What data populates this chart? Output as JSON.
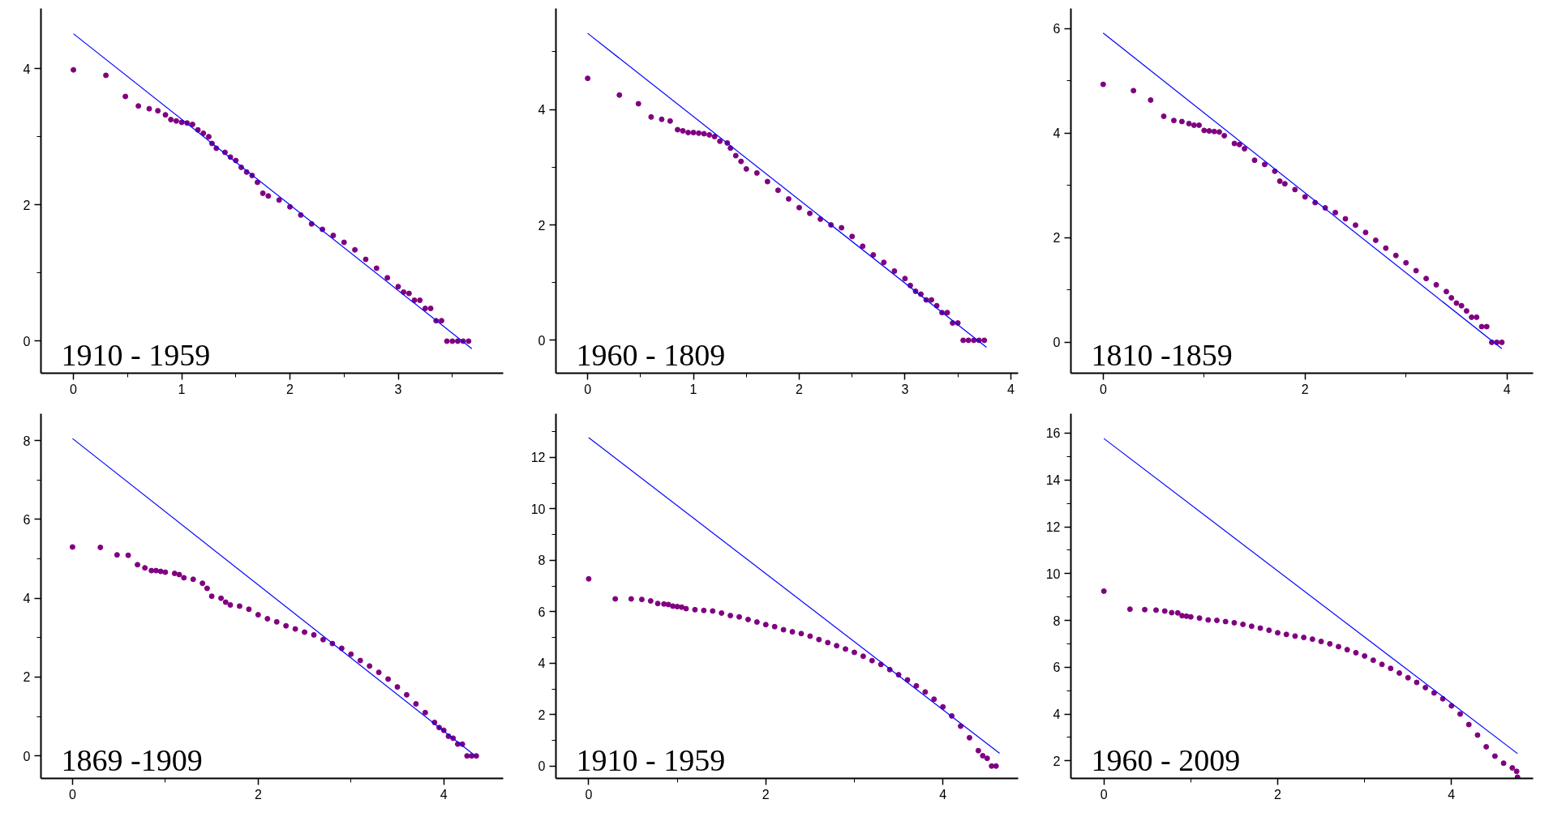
{
  "chart_data": [
    {
      "type": "scatter",
      "grid": false,
      "annotations": [
        "1910 - 1959"
      ],
      "xlim": [
        -0.3,
        3.97
      ],
      "ylim": [
        -0.47,
        4.88
      ],
      "xticks": [
        0,
        {
          "value": 0.5,
          "label": null
        },
        1,
        {
          "value": 1.5,
          "label": null
        },
        2,
        {
          "value": 2.5,
          "label": null
        },
        3,
        {
          "value": 3.5,
          "label": null
        }
      ],
      "yticks": [
        0,
        {
          "value": 1,
          "label": null
        },
        2,
        {
          "value": 3,
          "label": null
        },
        4
      ],
      "series": [
        {
          "marker": "circle",
          "color": "#800080",
          "x": [
            0,
            0.3,
            0.48,
            0.6,
            0.7,
            0.78,
            0.85,
            0.9,
            0.95,
            1.0,
            1.05,
            1.1,
            1.15,
            1.2,
            1.25,
            1.28,
            1.32,
            1.4,
            1.45,
            1.5,
            1.55,
            1.6,
            1.65,
            1.7,
            1.75,
            1.8,
            1.9,
            2.0,
            2.1,
            2.2,
            2.3,
            2.4,
            2.5,
            2.6,
            2.7,
            2.8,
            2.9,
            3.0,
            3.05,
            3.1,
            3.15,
            3.2,
            3.25,
            3.3,
            3.35,
            3.4,
            3.45,
            3.5,
            3.55,
            3.6,
            3.65
          ],
          "values": [
            3.98,
            3.9,
            3.59,
            3.45,
            3.41,
            3.38,
            3.32,
            3.25,
            3.23,
            3.21,
            3.2,
            3.18,
            3.1,
            3.05,
            3.0,
            2.9,
            2.83,
            2.77,
            2.7,
            2.65,
            2.55,
            2.48,
            2.43,
            2.33,
            2.17,
            2.13,
            2.07,
            1.97,
            1.85,
            1.72,
            1.64,
            1.55,
            1.45,
            1.34,
            1.2,
            1.07,
            0.93,
            0.8,
            0.72,
            0.7,
            0.6,
            0.6,
            0.48,
            0.48,
            0.3,
            0.3,
            0,
            0,
            0,
            0,
            0
          ]
        },
        {
          "type": "line",
          "color": "#0000ff",
          "x": [
            0,
            3.68
          ],
          "values": [
            4.51,
            -0.11
          ]
        }
      ]
    },
    {
      "type": "scatter",
      "grid": false,
      "annotations": [
        "1960 - 1809"
      ],
      "xlim": [
        -0.3,
        4.07
      ],
      "ylim": [
        -0.57,
        5.75
      ],
      "xticks": [
        0,
        {
          "value": 0.5,
          "label": null
        },
        1,
        {
          "value": 1.5,
          "label": null
        },
        2,
        {
          "value": 2.5,
          "label": null
        },
        3,
        {
          "value": 3.5,
          "label": null
        },
        4
      ],
      "yticks": [
        0,
        {
          "value": 1,
          "label": null
        },
        2,
        {
          "value": 3,
          "label": null
        },
        4,
        {
          "value": 5,
          "label": null
        }
      ],
      "series": [
        {
          "marker": "circle",
          "color": "#800080",
          "x": [
            0,
            0.3,
            0.48,
            0.6,
            0.7,
            0.78,
            0.85,
            0.9,
            0.95,
            1.0,
            1.05,
            1.1,
            1.15,
            1.2,
            1.25,
            1.32,
            1.35,
            1.4,
            1.45,
            1.5,
            1.6,
            1.7,
            1.8,
            1.9,
            2.0,
            2.1,
            2.2,
            2.3,
            2.4,
            2.5,
            2.6,
            2.7,
            2.8,
            2.9,
            3.0,
            3.05,
            3.1,
            3.15,
            3.2,
            3.25,
            3.3,
            3.35,
            3.4,
            3.45,
            3.5,
            3.55,
            3.6,
            3.65,
            3.7,
            3.75
          ],
          "values": [
            4.54,
            4.25,
            4.1,
            3.87,
            3.83,
            3.8,
            3.65,
            3.63,
            3.6,
            3.6,
            3.59,
            3.58,
            3.56,
            3.53,
            3.45,
            3.42,
            3.33,
            3.2,
            3.1,
            2.97,
            2.9,
            2.75,
            2.6,
            2.45,
            2.3,
            2.2,
            2.1,
            2.0,
            1.95,
            1.8,
            1.63,
            1.48,
            1.35,
            1.2,
            1.07,
            0.95,
            0.85,
            0.8,
            0.7,
            0.7,
            0.6,
            0.48,
            0.48,
            0.3,
            0.3,
            0,
            0,
            0,
            0,
            0
          ]
        },
        {
          "type": "line",
          "color": "#0000ff",
          "x": [
            0,
            3.77
          ],
          "values": [
            5.32,
            -0.12
          ]
        }
      ]
    },
    {
      "type": "scatter",
      "grid": false,
      "annotations": [
        "1810 -1859"
      ],
      "xlim": [
        -0.32,
        4.26
      ],
      "ylim": [
        -0.59,
        6.38
      ],
      "xticks": [
        0,
        {
          "value": 1,
          "label": null
        },
        2,
        {
          "value": 3,
          "label": null
        },
        4
      ],
      "yticks": [
        0,
        {
          "value": 1,
          "label": null
        },
        2,
        {
          "value": 3,
          "label": null
        },
        4,
        {
          "value": 5,
          "label": null
        },
        6
      ],
      "series": [
        {
          "marker": "circle",
          "color": "#800080",
          "x": [
            0,
            0.3,
            0.47,
            0.6,
            0.7,
            0.78,
            0.85,
            0.9,
            0.95,
            1.0,
            1.05,
            1.1,
            1.15,
            1.2,
            1.3,
            1.35,
            1.4,
            1.5,
            1.6,
            1.7,
            1.75,
            1.8,
            1.9,
            2.0,
            2.1,
            2.2,
            2.3,
            2.4,
            2.5,
            2.6,
            2.7,
            2.8,
            2.9,
            3.0,
            3.1,
            3.2,
            3.3,
            3.4,
            3.45,
            3.5,
            3.55,
            3.6,
            3.65,
            3.7,
            3.75,
            3.8,
            3.85,
            3.9,
            3.95
          ],
          "values": [
            4.93,
            4.81,
            4.63,
            4.32,
            4.24,
            4.22,
            4.18,
            4.15,
            4.15,
            4.05,
            4.04,
            4.03,
            4.02,
            3.95,
            3.8,
            3.78,
            3.7,
            3.48,
            3.4,
            3.27,
            3.08,
            3.03,
            2.92,
            2.78,
            2.67,
            2.57,
            2.48,
            2.36,
            2.24,
            2.1,
            1.95,
            1.8,
            1.66,
            1.52,
            1.37,
            1.22,
            1.1,
            0.97,
            0.85,
            0.75,
            0.7,
            0.6,
            0.48,
            0.48,
            0.3,
            0.3,
            0,
            0,
            0
          ]
        },
        {
          "type": "line",
          "color": "#0000ff",
          "x": [
            0,
            3.95
          ],
          "values": [
            5.91,
            -0.12
          ]
        }
      ]
    },
    {
      "type": "scatter",
      "grid": false,
      "annotations": [
        "1869 -1909"
      ],
      "xlim": [
        -0.34,
        4.64
      ],
      "ylim": [
        -0.57,
        8.68
      ],
      "xticks": [
        0,
        {
          "value": 1,
          "label": null
        },
        2,
        {
          "value": 3,
          "label": null
        },
        4
      ],
      "yticks": [
        0,
        {
          "value": 1,
          "label": null
        },
        2,
        {
          "value": 3,
          "label": null
        },
        4,
        {
          "value": 5,
          "label": null
        },
        6,
        {
          "value": 7,
          "label": null
        },
        8
      ],
      "series": [
        {
          "marker": "circle",
          "color": "#800080",
          "x": [
            0,
            0.3,
            0.48,
            0.6,
            0.7,
            0.78,
            0.85,
            0.9,
            0.95,
            1.0,
            1.1,
            1.15,
            1.2,
            1.3,
            1.4,
            1.45,
            1.5,
            1.6,
            1.65,
            1.7,
            1.8,
            1.9,
            2.0,
            2.1,
            2.2,
            2.3,
            2.4,
            2.5,
            2.6,
            2.7,
            2.8,
            2.9,
            3.0,
            3.1,
            3.2,
            3.3,
            3.4,
            3.5,
            3.6,
            3.7,
            3.8,
            3.9,
            3.95,
            4.0,
            4.05,
            4.1,
            4.15,
            4.2,
            4.25,
            4.3,
            4.35
          ],
          "values": [
            5.3,
            5.29,
            5.1,
            5.09,
            4.85,
            4.77,
            4.7,
            4.7,
            4.68,
            4.66,
            4.63,
            4.6,
            4.52,
            4.48,
            4.38,
            4.25,
            4.05,
            4.0,
            3.9,
            3.83,
            3.8,
            3.72,
            3.58,
            3.48,
            3.4,
            3.3,
            3.22,
            3.14,
            3.07,
            2.95,
            2.85,
            2.73,
            2.58,
            2.42,
            2.28,
            2.12,
            1.95,
            1.75,
            1.55,
            1.32,
            1.1,
            0.85,
            0.72,
            0.65,
            0.5,
            0.45,
            0.3,
            0.3,
            0,
            0,
            0
          ]
        },
        {
          "type": "line",
          "color": "#0000ff",
          "x": [
            0,
            4.34
          ],
          "values": [
            8.05,
            0
          ]
        }
      ]
    },
    {
      "type": "scatter",
      "grid": false,
      "annotations": [
        "1910 - 1959"
      ],
      "xlim": [
        -0.37,
        4.85
      ],
      "ylim": [
        -0.48,
        13.7
      ],
      "xticks": [
        0,
        {
          "value": 1,
          "label": null
        },
        2,
        {
          "value": 3,
          "label": null
        },
        4
      ],
      "yticks": [
        0,
        {
          "value": 1,
          "label": null
        },
        2,
        {
          "value": 3,
          "label": null
        },
        4,
        {
          "value": 5,
          "label": null
        },
        6,
        {
          "value": 7,
          "label": null
        },
        8,
        {
          "value": 9,
          "label": null
        },
        10,
        {
          "value": 11,
          "label": null
        },
        12,
        {
          "value": 13,
          "label": null
        }
      ],
      "series": [
        {
          "marker": "circle",
          "color": "#800080",
          "x": [
            0,
            0.3,
            0.48,
            0.6,
            0.7,
            0.78,
            0.85,
            0.9,
            0.95,
            1.0,
            1.05,
            1.1,
            1.2,
            1.3,
            1.4,
            1.5,
            1.6,
            1.7,
            1.8,
            1.9,
            2.0,
            2.1,
            2.2,
            2.3,
            2.4,
            2.5,
            2.6,
            2.7,
            2.8,
            2.9,
            3.0,
            3.1,
            3.2,
            3.3,
            3.4,
            3.5,
            3.6,
            3.7,
            3.8,
            3.9,
            4.0,
            4.1,
            4.2,
            4.3,
            4.4,
            4.45,
            4.5,
            4.55,
            4.6
          ],
          "values": [
            7.28,
            6.5,
            6.5,
            6.48,
            6.42,
            6.32,
            6.3,
            6.28,
            6.22,
            6.2,
            6.18,
            6.12,
            6.08,
            6.05,
            6.03,
            5.95,
            5.85,
            5.8,
            5.7,
            5.6,
            5.5,
            5.42,
            5.3,
            5.22,
            5.15,
            5.05,
            4.92,
            4.8,
            4.68,
            4.55,
            4.42,
            4.27,
            4.1,
            3.95,
            3.75,
            3.55,
            3.35,
            3.12,
            2.88,
            2.6,
            2.3,
            1.95,
            1.55,
            1.1,
            0.6,
            0.4,
            0.3,
            0,
            0
          ]
        },
        {
          "type": "line",
          "color": "#0000ff",
          "x": [
            0,
            4.64
          ],
          "values": [
            12.77,
            0.5
          ]
        }
      ]
    },
    {
      "type": "scatter",
      "grid": false,
      "annotations": [
        "1960 - 2009"
      ],
      "xlim": [
        -0.38,
        4.94
      ],
      "ylim": [
        1.25,
        16.83
      ],
      "xticks": [
        0,
        {
          "value": 1,
          "label": null
        },
        2,
        {
          "value": 3,
          "label": null
        },
        4
      ],
      "yticks": [
        2,
        {
          "value": 3,
          "label": null
        },
        4,
        {
          "value": 5,
          "label": null
        },
        6,
        {
          "value": 7,
          "label": null
        },
        8,
        {
          "value": 9,
          "label": null
        },
        10,
        {
          "value": 11,
          "label": null
        },
        12,
        {
          "value": 13,
          "label": null
        },
        14,
        {
          "value": 15,
          "label": null
        },
        16
      ],
      "series": [
        {
          "marker": "circle",
          "color": "#800080",
          "x": [
            0,
            0.3,
            0.47,
            0.6,
            0.7,
            0.78,
            0.85,
            0.9,
            0.95,
            1.0,
            1.1,
            1.2,
            1.3,
            1.4,
            1.5,
            1.6,
            1.7,
            1.8,
            1.9,
            2.0,
            2.1,
            2.2,
            2.3,
            2.4,
            2.5,
            2.6,
            2.7,
            2.8,
            2.9,
            3.0,
            3.1,
            3.2,
            3.3,
            3.4,
            3.5,
            3.6,
            3.7,
            3.8,
            3.9,
            4.0,
            4.1,
            4.2,
            4.3,
            4.4,
            4.5,
            4.6,
            4.7,
            4.75,
            4.76
          ],
          "values": [
            9.25,
            8.48,
            8.46,
            8.44,
            8.4,
            8.33,
            8.32,
            8.2,
            8.18,
            8.15,
            8.1,
            8.02,
            8.0,
            7.95,
            7.9,
            7.83,
            7.75,
            7.67,
            7.58,
            7.47,
            7.4,
            7.33,
            7.27,
            7.2,
            7.1,
            7.0,
            6.88,
            6.75,
            6.62,
            6.48,
            6.3,
            6.12,
            5.95,
            5.75,
            5.55,
            5.35,
            5.13,
            4.9,
            4.65,
            4.35,
            4.0,
            3.55,
            3.1,
            2.6,
            2.2,
            1.9,
            1.7,
            1.55,
            1.3
          ]
        },
        {
          "type": "line",
          "color": "#0000ff",
          "x": [
            0,
            4.76
          ],
          "values": [
            15.77,
            2.31
          ]
        }
      ]
    }
  ]
}
